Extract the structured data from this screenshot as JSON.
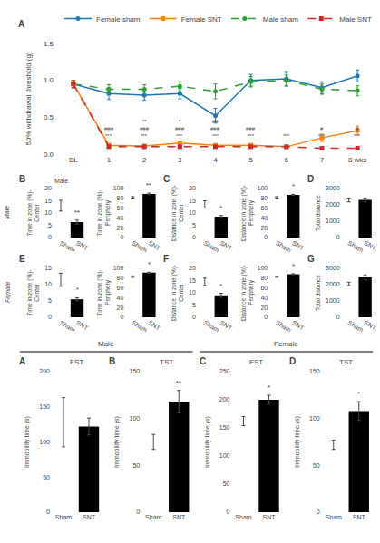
{
  "chart_data": [
    {
      "type": "line",
      "panel_label": "A",
      "categories": [
        "BL",
        "1",
        "2",
        "3",
        "4",
        "5",
        "6",
        "7",
        "8 wks"
      ],
      "series": [
        {
          "name": "Female sham",
          "values": [
            0.95,
            0.82,
            0.8,
            0.82,
            0.52,
            1.0,
            1.02,
            0.9,
            1.06
          ],
          "errors": [
            0.05,
            0.08,
            0.07,
            0.07,
            0.1,
            0.08,
            0.1,
            0.08,
            0.08
          ],
          "marker": "circle",
          "line_style": "solid"
        },
        {
          "name": "Female SNT",
          "values": [
            0.95,
            0.12,
            0.11,
            0.15,
            0.12,
            0.12,
            0.1,
            0.22,
            0.32
          ],
          "errors": [
            0.05,
            0.02,
            0.02,
            0.02,
            0.02,
            0.02,
            0.02,
            0.05,
            0.06
          ],
          "marker": "square",
          "line_style": "solid"
        },
        {
          "name": "Male sham",
          "values": [
            0.95,
            0.88,
            0.88,
            0.92,
            0.85,
            0.98,
            1.0,
            0.88,
            0.86
          ],
          "errors": [
            0.05,
            0.06,
            0.06,
            0.06,
            0.1,
            0.07,
            0.07,
            0.07,
            0.07
          ],
          "marker": "circle",
          "line_style": "dash"
        },
        {
          "name": "Male SNT",
          "values": [
            0.95,
            0.1,
            0.1,
            0.1,
            0.1,
            0.1,
            0.1,
            0.08,
            0.08
          ],
          "errors": [
            0.05,
            0.01,
            0.01,
            0.01,
            0.01,
            0.01,
            0.01,
            0.01,
            0.01
          ],
          "marker": "square",
          "line_style": "dash"
        }
      ],
      "ylabel": "50% withdrawal threshold (g)",
      "ylim": [
        0.0,
        1.5
      ],
      "yticks": [
        {
          "value": 0.0,
          "label": "0.0"
        },
        {
          "value": 0.5,
          "label": "0.5"
        },
        {
          "value": 1.0,
          "label": "1.0"
        },
        {
          "value": 1.5,
          "label": "1.5"
        }
      ],
      "grid": false,
      "legend": "top",
      "annotations": [
        {
          "x": "1",
          "y": 0.18,
          "text": "***"
        },
        {
          "x": "1",
          "y": 0.28,
          "text": "###"
        },
        {
          "x": "2",
          "y": 0.18,
          "text": "***"
        },
        {
          "x": "2",
          "y": 0.28,
          "text": "###"
        },
        {
          "x": "2",
          "y": 0.38,
          "text": "**"
        },
        {
          "x": "3",
          "y": 0.18,
          "text": "***"
        },
        {
          "x": "3",
          "y": 0.28,
          "text": "###"
        },
        {
          "x": "3",
          "y": 0.38,
          "text": "*"
        },
        {
          "x": "4",
          "y": 0.18,
          "text": "***"
        },
        {
          "x": "4",
          "y": 0.28,
          "text": "###"
        },
        {
          "x": "4",
          "y": 0.38,
          "text": "##"
        },
        {
          "x": "5",
          "y": 0.18,
          "text": "***"
        },
        {
          "x": "5",
          "y": 0.28,
          "text": "###"
        },
        {
          "x": "6",
          "y": 0.18,
          "text": "***"
        },
        {
          "x": "7",
          "y": 0.28,
          "text": "#"
        },
        {
          "x": "7",
          "y": 0.18,
          "text": "***"
        },
        {
          "x": "8 wks",
          "y": 0.18,
          "text": "***"
        },
        {
          "x": "8 wks",
          "y": 0.28,
          "text": "#"
        }
      ]
    },
    {
      "type": "bar",
      "panel_label": "B",
      "row_label": "Male",
      "group_label": "Male",
      "categories": [
        "Sham",
        "SNT"
      ],
      "values": [
        13.0,
        6.3
      ],
      "errors": [
        2.2,
        0.8
      ],
      "colors": [
        "white",
        "black"
      ],
      "ylabel": "Time in zone (%)-Center",
      "ylim": [
        0,
        20
      ],
      "yticks": [
        0,
        5,
        10,
        15,
        20
      ],
      "grid": false,
      "annotations": [
        {
          "x": "SNT",
          "text": "**"
        }
      ]
    },
    {
      "type": "bar",
      "categories": [
        "Sham",
        "SNT"
      ],
      "values": [
        82.0,
        89.0
      ],
      "errors": [
        1.5,
        1.5
      ],
      "colors": [
        "white",
        "black"
      ],
      "ylabel": "Time in zone (%)-Periphery",
      "ylim": [
        0,
        100
      ],
      "yticks": [
        0,
        20,
        40,
        60,
        80,
        100
      ],
      "grid": false,
      "annotations": [
        {
          "x": "SNT",
          "text": "**"
        }
      ]
    },
    {
      "type": "bar",
      "panel_label": "C",
      "categories": [
        "Sham",
        "SNT"
      ],
      "values": [
        13.5,
        8.5
      ],
      "errors": [
        1.5,
        0.5
      ],
      "colors": [
        "white",
        "black"
      ],
      "ylabel": "Distance in zone (%)-Center",
      "ylim": [
        0,
        20
      ],
      "yticks": [
        0,
        5,
        10,
        15,
        20
      ],
      "grid": false,
      "annotations": [
        {
          "x": "SNT",
          "text": "*"
        }
      ]
    },
    {
      "type": "bar",
      "categories": [
        "Sham",
        "SNT"
      ],
      "values": [
        82.0,
        87.0
      ],
      "errors": [
        1.5,
        1.0
      ],
      "colors": [
        "white",
        "black"
      ],
      "ylabel": "Distance in zone (%)-Periphery",
      "ylim": [
        0,
        100
      ],
      "yticks": [
        0,
        20,
        40,
        60,
        80,
        100
      ],
      "grid": false,
      "annotations": [
        {
          "x": "SNT",
          "text": "*"
        }
      ]
    },
    {
      "type": "bar",
      "panel_label": "D",
      "categories": [
        "Sham",
        "SNT"
      ],
      "values": [
        2300,
        2300
      ],
      "errors": [
        120,
        120
      ],
      "colors": [
        "white",
        "black"
      ],
      "ylabel": "Total distance",
      "ylim": [
        0,
        3000
      ],
      "yticks": [
        0,
        1000,
        2000,
        3000
      ],
      "grid": false
    },
    {
      "type": "bar",
      "panel_label": "E",
      "row_label": "Female",
      "categories": [
        "Sham",
        "SNT"
      ],
      "values": [
        11.5,
        5.5
      ],
      "errors": [
        2.0,
        0.5
      ],
      "colors": [
        "white",
        "black"
      ],
      "ylabel": "Time in zone (%)-Center",
      "ylim": [
        0,
        15
      ],
      "yticks": [
        0,
        5,
        10,
        15
      ],
      "grid": false,
      "annotations": [
        {
          "x": "SNT",
          "text": "*"
        }
      ]
    },
    {
      "type": "bar",
      "categories": [
        "Sham",
        "SNT"
      ],
      "values": [
        83.0,
        91.0
      ],
      "errors": [
        1.5,
        1.0
      ],
      "colors": [
        "white",
        "black"
      ],
      "ylabel": "Time in zone (%)-Periphery",
      "ylim": [
        0,
        100
      ],
      "yticks": [
        0,
        20,
        40,
        60,
        80,
        100
      ],
      "grid": false,
      "annotations": [
        {
          "x": "SNT",
          "text": "*"
        }
      ]
    },
    {
      "type": "bar",
      "panel_label": "F",
      "categories": [
        "Sham",
        "SNT"
      ],
      "values": [
        14.5,
        9.0
      ],
      "errors": [
        1.5,
        0.8
      ],
      "colors": [
        "white",
        "black"
      ],
      "ylabel": "Distance in zone (%)-Center",
      "ylim": [
        0,
        20
      ],
      "yticks": [
        0,
        5,
        10,
        15,
        20
      ],
      "grid": false,
      "annotations": [
        {
          "x": "SNT",
          "text": "*"
        }
      ]
    },
    {
      "type": "bar",
      "categories": [
        "Sham",
        "SNT"
      ],
      "values": [
        83.0,
        88.0
      ],
      "errors": [
        1.2,
        1.0
      ],
      "colors": [
        "white",
        "black"
      ],
      "ylabel": "Distance in zone (%)-Periphery",
      "ylim": [
        0,
        100
      ],
      "yticks": [
        0,
        20,
        40,
        60,
        80,
        100
      ],
      "grid": false,
      "annotations": [
        {
          "x": "SNT",
          "text": "*"
        }
      ]
    },
    {
      "type": "bar",
      "panel_label": "G",
      "categories": [
        "Sham",
        "SNT"
      ],
      "values": [
        2050,
        2450
      ],
      "errors": [
        100,
        150
      ],
      "colors": [
        "white",
        "black"
      ],
      "ylabel": "Total distance",
      "ylim": [
        0,
        3000
      ],
      "yticks": [
        0,
        1000,
        2000,
        3000
      ],
      "grid": false
    },
    {
      "type": "bar",
      "panel_label": "A",
      "title": "FST",
      "group_label": "Male",
      "categories": [
        "Sham",
        "SNT"
      ],
      "values": [
        128,
        122
      ],
      "errors": [
        35,
        12
      ],
      "colors": [
        "white",
        "black"
      ],
      "ylabel": "Immobility time (s)",
      "ylim": [
        0,
        200
      ],
      "yticks": [
        0,
        50,
        100,
        150,
        200
      ],
      "grid": false
    },
    {
      "type": "bar",
      "panel_label": "B",
      "title": "TST",
      "categories": [
        "Sham",
        "SNT"
      ],
      "values": [
        75,
        118
      ],
      "errors": [
        8,
        12
      ],
      "colors": [
        "white",
        "black"
      ],
      "ylabel": "Immobility time (s)",
      "ylim": [
        0,
        150
      ],
      "yticks": [
        0,
        50,
        100,
        150
      ],
      "grid": false,
      "annotations": [
        {
          "x": "SNT",
          "text": "**"
        }
      ]
    },
    {
      "type": "bar",
      "panel_label": "C",
      "title": "FST",
      "group_label": "Female",
      "categories": [
        "Sham",
        "SNT"
      ],
      "values": [
        162,
        200
      ],
      "errors": [
        8,
        8
      ],
      "colors": [
        "white",
        "black"
      ],
      "ylabel": "Immobility time (s)",
      "ylim": [
        0,
        250
      ],
      "yticks": [
        0,
        50,
        100,
        150,
        200,
        250
      ],
      "grid": false,
      "annotations": [
        {
          "x": "SNT",
          "text": "*"
        }
      ]
    },
    {
      "type": "bar",
      "panel_label": "D",
      "title": "TST",
      "categories": [
        "Sham",
        "SNT"
      ],
      "values": [
        72,
        108
      ],
      "errors": [
        5,
        10
      ],
      "colors": [
        "white",
        "black"
      ],
      "ylabel": "Immobility time (s)",
      "ylim": [
        0,
        150
      ],
      "yticks": [
        0,
        50,
        100,
        150
      ],
      "grid": false,
      "annotations": [
        {
          "x": "SNT",
          "text": "*"
        }
      ]
    }
  ]
}
